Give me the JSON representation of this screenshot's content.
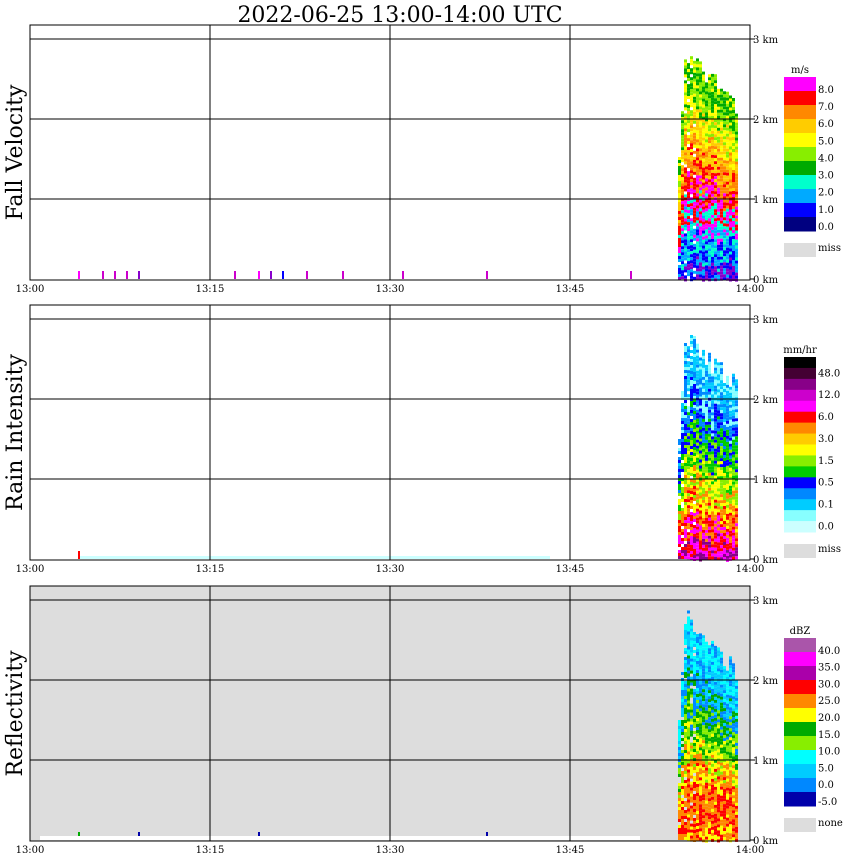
{
  "title": "2022-06-25   13:00-14:00 UTC",
  "chart_data": [
    {
      "type": "heatmap",
      "ylabel": "Fall Velocity",
      "x_ticks": [
        "13:00",
        "13:15",
        "13:30",
        "13:45",
        "14:00"
      ],
      "y_ticks": [
        "0 km",
        "1 km",
        "2 km",
        "3 km"
      ],
      "xlim": [
        "13:00",
        "14:00"
      ],
      "ylim_km": [
        0,
        3.1
      ],
      "grid": true,
      "background": "#ffffff",
      "legend": {
        "unit": "m/s",
        "colors": [
          "#ff00ff",
          "#ff0000",
          "#ff8800",
          "#ffcc00",
          "#ffff00",
          "#88ee00",
          "#00aa00",
          "#00ffcc",
          "#00aaff",
          "#0000ff",
          "#000080"
        ],
        "labels": [
          "8.0",
          "7.0",
          "6.0",
          "5.0",
          "4.0",
          "3.0",
          "2.0",
          "1.0",
          "0.0"
        ],
        "missing_label": "miss",
        "missing_color": "#dddddd"
      },
      "precip_event": {
        "start": "13:54",
        "end": "13:59",
        "top_km": 3.05,
        "palette": [
          "#00aa00",
          "#88ee00",
          "#ffff00",
          "#ffcc00",
          "#ff8800",
          "#ff0000",
          "#ff00ff",
          "#00ffcc",
          "#00aaff",
          "#0000ff",
          "#8800cc"
        ]
      },
      "surface_marks": [
        {
          "t": "13:04",
          "color": "#ff00ff"
        },
        {
          "t": "13:06",
          "color": "#cc00cc"
        },
        {
          "t": "13:07",
          "color": "#cc00cc"
        },
        {
          "t": "13:08",
          "color": "#cc00cc"
        },
        {
          "t": "13:09",
          "color": "#8800cc"
        },
        {
          "t": "13:17",
          "color": "#cc00cc"
        },
        {
          "t": "13:19",
          "color": "#ff00ff"
        },
        {
          "t": "13:20",
          "color": "#8800cc"
        },
        {
          "t": "13:21",
          "color": "#0000ff"
        },
        {
          "t": "13:23",
          "color": "#cc00cc"
        },
        {
          "t": "13:26",
          "color": "#cc00cc"
        },
        {
          "t": "13:31",
          "color": "#cc00cc"
        },
        {
          "t": "13:38",
          "color": "#cc00cc"
        },
        {
          "t": "13:50",
          "color": "#cc00cc"
        }
      ]
    },
    {
      "type": "heatmap",
      "ylabel": "Rain Intensity",
      "x_ticks": [
        "13:00",
        "13:15",
        "13:30",
        "13:45",
        "14:00"
      ],
      "y_ticks": [
        "0 km",
        "1 km",
        "2 km",
        "3 km"
      ],
      "xlim": [
        "13:00",
        "14:00"
      ],
      "ylim_km": [
        0,
        3.1
      ],
      "grid": true,
      "background": "#ffffff",
      "legend": {
        "unit": "mm/hr",
        "colors": [
          "#000000",
          "#440033",
          "#880088",
          "#cc00cc",
          "#ff00ff",
          "#ff0000",
          "#ff8800",
          "#ffcc00",
          "#ffff00",
          "#88ee00",
          "#00cc00",
          "#0000ff",
          "#0088ff",
          "#00ccff",
          "#88ffff",
          "#ccffff"
        ],
        "labels": [
          "48.0",
          "12.0",
          "6.0",
          "3.0",
          "1.5",
          "0.5",
          "0.1",
          "0.0"
        ],
        "missing_label": "miss",
        "missing_color": "#dddddd"
      },
      "precip_event": {
        "start": "13:54",
        "end": "13:59",
        "top_km": 3.0,
        "palette": [
          "#00ccff",
          "#88ffff",
          "#0088ff",
          "#0000ff",
          "#00cc00",
          "#88ee00",
          "#ffff00",
          "#ff8800",
          "#ff0000",
          "#ff00ff",
          "#880088"
        ]
      },
      "surface_marks": [
        {
          "t": "13:04",
          "color": "#ff0000"
        }
      ]
    },
    {
      "type": "heatmap",
      "ylabel": "Reflectivity",
      "x_ticks": [
        "13:00",
        "13:15",
        "13:30",
        "13:45",
        "14:00"
      ],
      "y_ticks": [
        "0 km",
        "1 km",
        "2 km",
        "3 km"
      ],
      "xlim": [
        "13:00",
        "14:00"
      ],
      "ylim_km": [
        0,
        3.1
      ],
      "grid": true,
      "background": "#dddddd",
      "legend": {
        "unit": "dBZ",
        "colors": [
          "#aa55aa",
          "#ff00ff",
          "#aa00aa",
          "#ff0000",
          "#ff8800",
          "#ffff00",
          "#00aa00",
          "#88ee00",
          "#00ffff",
          "#00ccff",
          "#0088ff",
          "#0000aa"
        ],
        "labels": [
          "40.0",
          "35.0",
          "30.0",
          "25.0",
          "20.0",
          "15.0",
          "10.0",
          "5.0",
          "0.0",
          "-5.0"
        ],
        "missing_label": "none",
        "missing_color": "#dddddd"
      },
      "precip_event": {
        "start": "13:54",
        "end": "13:59",
        "top_km": 3.0,
        "palette": [
          "#00ffff",
          "#00ccff",
          "#0088ff",
          "#00aa00",
          "#88ee00",
          "#ffff00",
          "#ff8800",
          "#ff0000",
          "#ff8800",
          "#ffff00"
        ]
      },
      "surface_marks": [
        {
          "t": "13:04",
          "color": "#00aa00"
        },
        {
          "t": "13:09",
          "color": "#0000aa"
        },
        {
          "t": "13:19",
          "color": "#0000aa"
        },
        {
          "t": "13:38",
          "color": "#0000aa"
        }
      ]
    }
  ]
}
